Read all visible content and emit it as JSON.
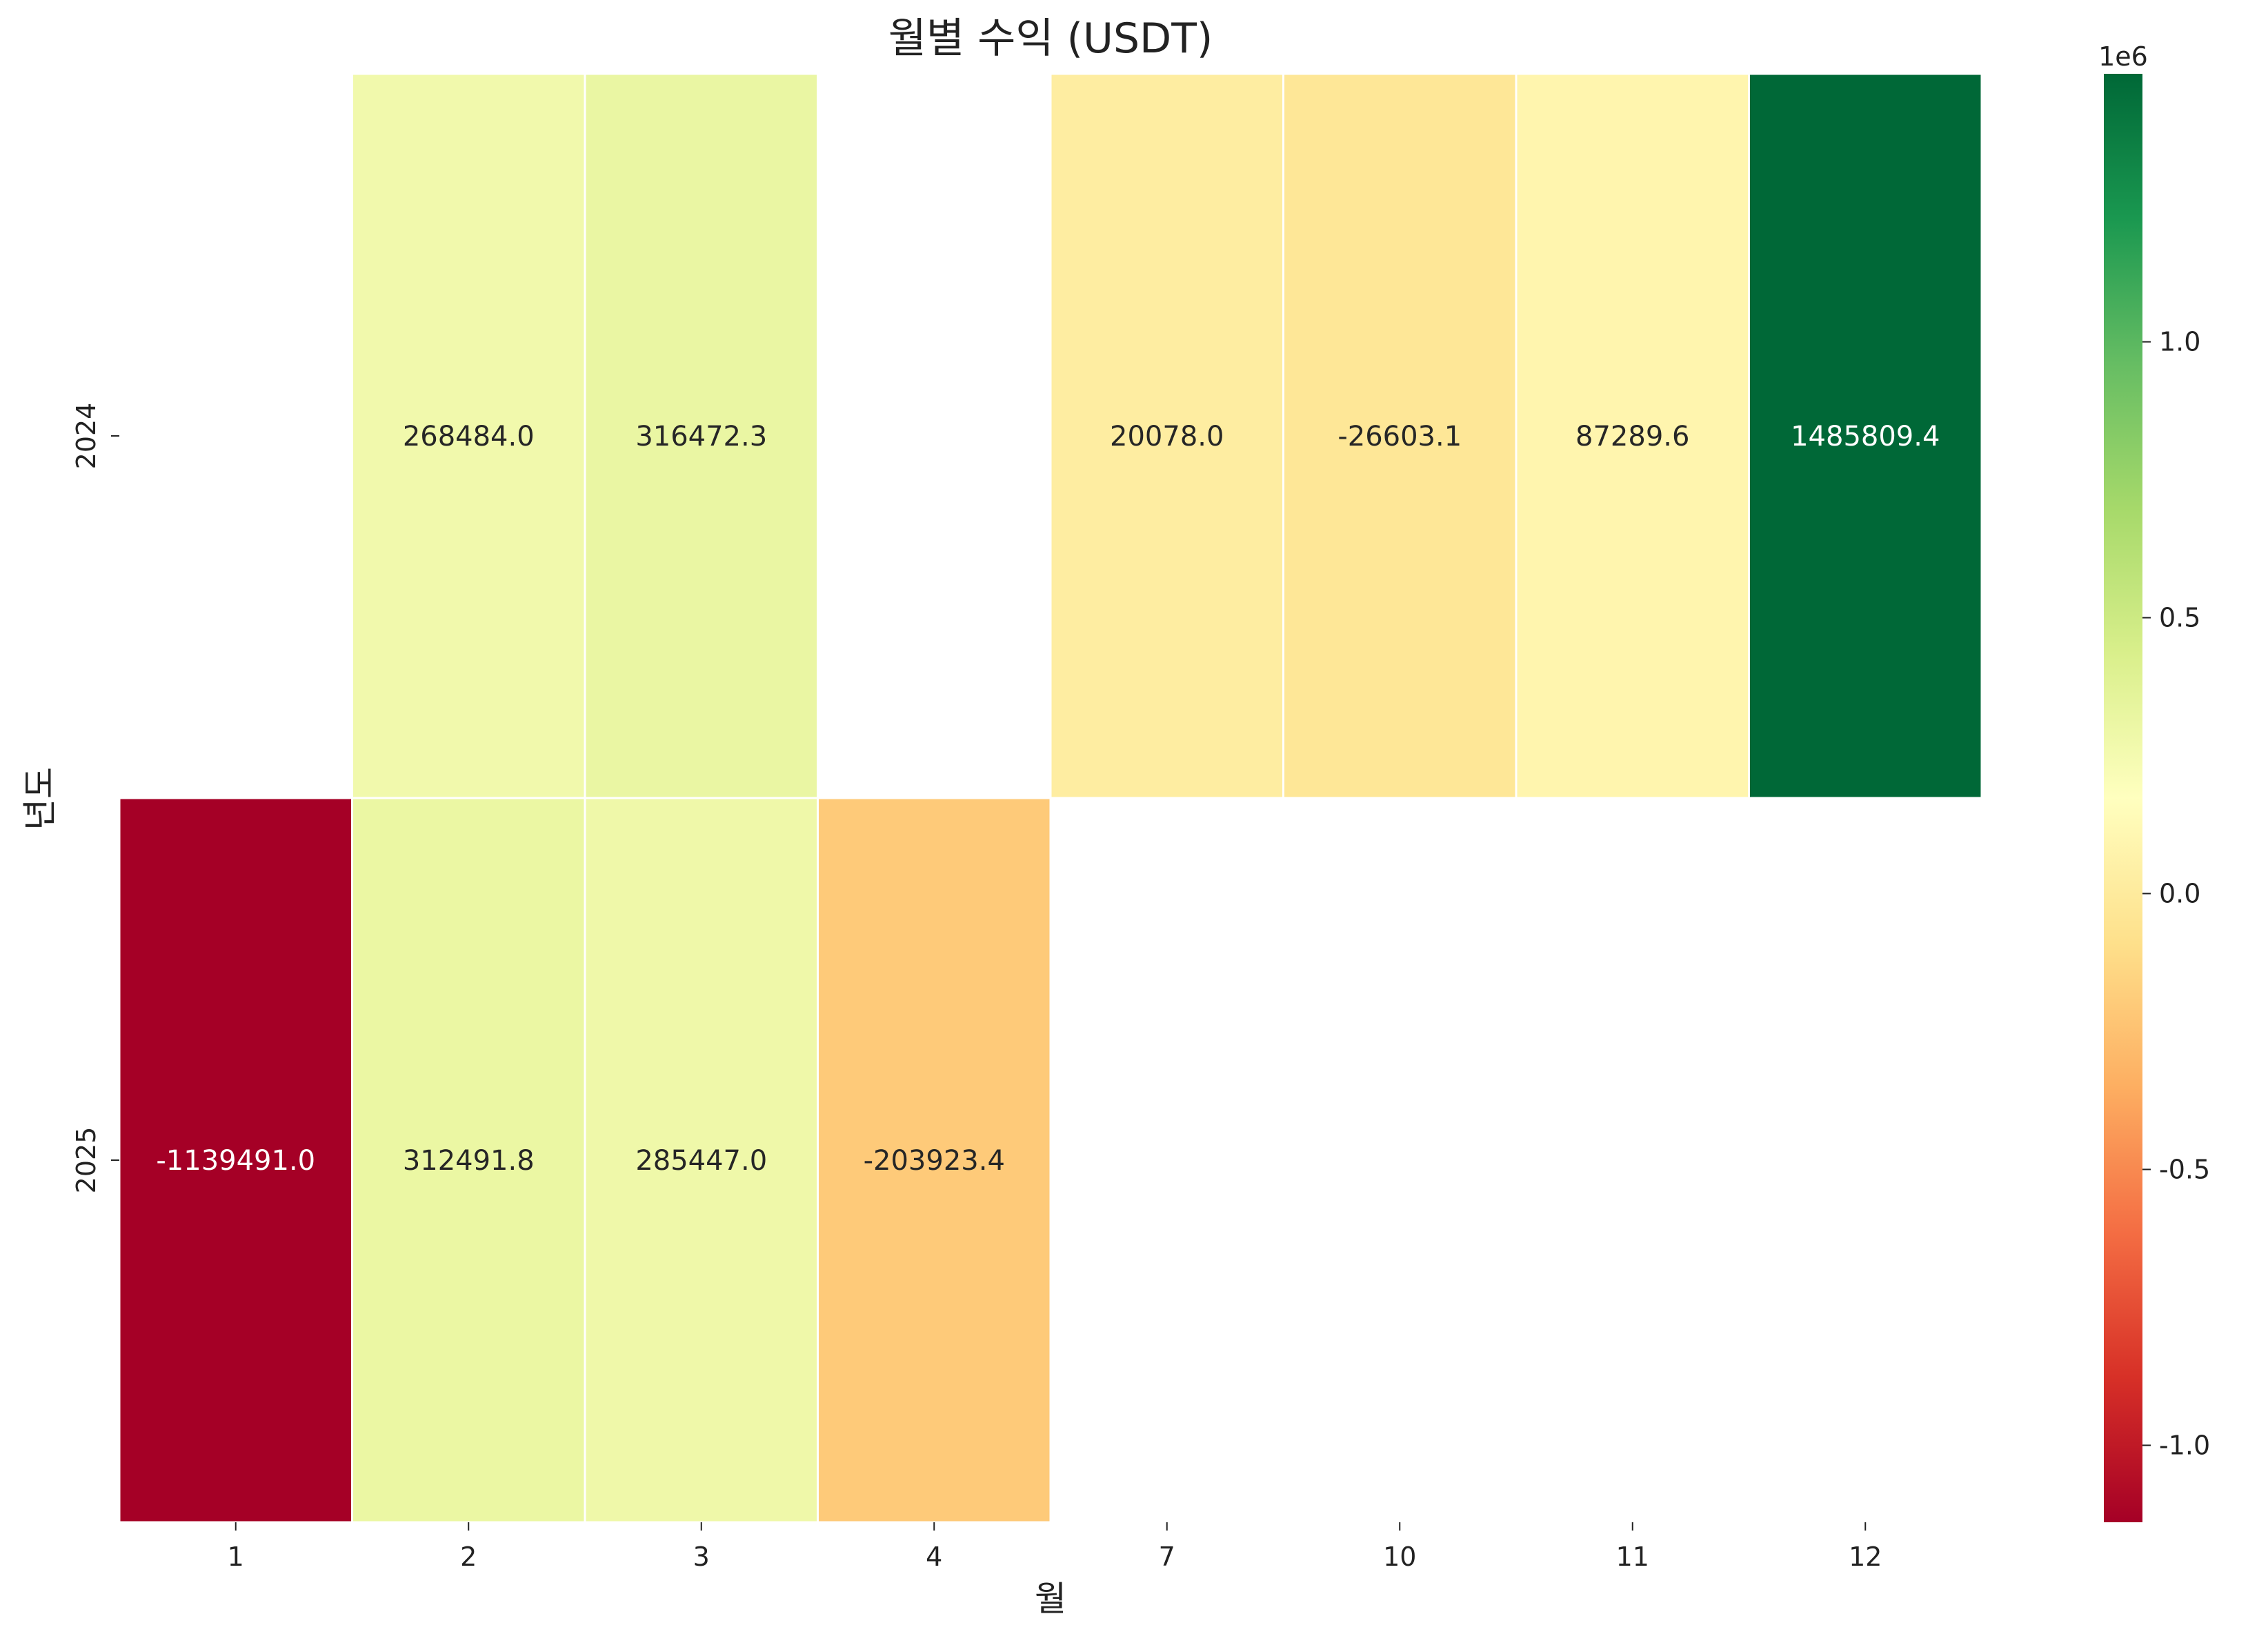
{
  "chart_data": {
    "type": "heatmap",
    "title": "월별 수익 (USDT)",
    "xlabel": "월",
    "ylabel": "년도",
    "x_categories": [
      "1",
      "2",
      "3",
      "4",
      "7",
      "10",
      "11",
      "12"
    ],
    "y_categories": [
      "2024",
      "2025"
    ],
    "values": [
      [
        null,
        268484.0,
        316472.3,
        null,
        20078.0,
        -26603.1,
        87289.6,
        1485809.4
      ],
      [
        -1139491.0,
        312491.8,
        285447.0,
        -203923.4,
        null,
        null,
        null,
        null
      ]
    ],
    "value_labels": [
      [
        "",
        "268484.0",
        "316472.3",
        "",
        "20078.0",
        "-26603.1",
        "87289.6",
        "1485809.4"
      ],
      [
        "-1139491.0",
        "312491.8",
        "285447.0",
        "-203923.4",
        "",
        "",
        "",
        ""
      ]
    ],
    "colormap": "RdYlGn",
    "colorbar": {
      "vmin": -1139491.0,
      "vmax": 1485809.4,
      "ticks": [
        -1.0,
        -0.5,
        0.0,
        0.5,
        1.0
      ],
      "tick_labels": [
        "-1.0",
        "-0.5",
        "0.0",
        "0.5",
        "1.0"
      ],
      "scale_label": "1e6",
      "tick_multiplier": 1000000
    }
  }
}
